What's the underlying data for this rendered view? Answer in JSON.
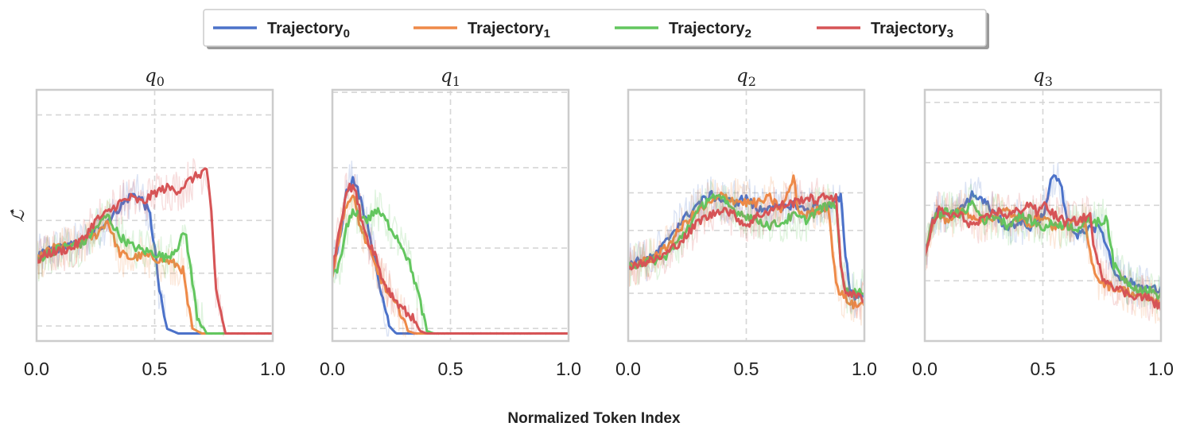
{
  "chart_data": {
    "type": "line",
    "xlabel": "Normalized Token Index",
    "ylabel": "ℒ̂",
    "x_ticks": [
      "0.0",
      "0.5",
      "1.0"
    ],
    "xlim": [
      0,
      1
    ],
    "ylim": [
      0,
      1
    ],
    "grid": true,
    "legend_position": "top-center",
    "series_styles": [
      {
        "base": "Trajectory",
        "sub": "0",
        "color": "#4c72c9"
      },
      {
        "base": "Trajectory",
        "sub": "1",
        "color": "#ee8a48"
      },
      {
        "base": "Trajectory",
        "sub": "2",
        "color": "#63c65f"
      },
      {
        "base": "Trajectory",
        "sub": "3",
        "color": "#d65456"
      }
    ],
    "panels": [
      {
        "title_base": "q",
        "title_sub": "0",
        "series": [
          {
            "name": "Trajectory0",
            "x": [
              0,
              0.05,
              0.1,
              0.15,
              0.2,
              0.25,
              0.3,
              0.35,
              0.4,
              0.42,
              0.45,
              0.48,
              0.5,
              0.52,
              0.55,
              0.6,
              0.7,
              1.0
            ],
            "y": [
              0.33,
              0.36,
              0.37,
              0.38,
              0.4,
              0.44,
              0.48,
              0.53,
              0.58,
              0.58,
              0.56,
              0.5,
              0.37,
              0.2,
              0.05,
              0.03,
              0.03,
              0.03
            ]
          },
          {
            "name": "Trajectory1",
            "x": [
              0,
              0.05,
              0.1,
              0.15,
              0.2,
              0.25,
              0.3,
              0.35,
              0.4,
              0.45,
              0.5,
              0.55,
              0.6,
              0.62,
              0.64,
              0.66,
              0.7,
              1.0
            ],
            "y": [
              0.32,
              0.36,
              0.38,
              0.37,
              0.4,
              0.42,
              0.48,
              0.35,
              0.33,
              0.34,
              0.33,
              0.32,
              0.3,
              0.28,
              0.15,
              0.05,
              0.03,
              0.03
            ]
          },
          {
            "name": "Trajectory2",
            "x": [
              0,
              0.05,
              0.1,
              0.15,
              0.2,
              0.25,
              0.3,
              0.35,
              0.4,
              0.45,
              0.5,
              0.55,
              0.6,
              0.63,
              0.65,
              0.68,
              0.72,
              1.0
            ],
            "y": [
              0.32,
              0.35,
              0.37,
              0.38,
              0.39,
              0.45,
              0.5,
              0.42,
              0.38,
              0.36,
              0.35,
              0.33,
              0.38,
              0.44,
              0.3,
              0.1,
              0.03,
              0.03
            ]
          },
          {
            "name": "Trajectory3",
            "x": [
              0,
              0.05,
              0.1,
              0.15,
              0.2,
              0.25,
              0.3,
              0.35,
              0.4,
              0.45,
              0.5,
              0.55,
              0.6,
              0.65,
              0.7,
              0.72,
              0.74,
              0.76,
              0.8,
              1.0
            ],
            "y": [
              0.32,
              0.35,
              0.36,
              0.37,
              0.41,
              0.48,
              0.51,
              0.55,
              0.57,
              0.55,
              0.59,
              0.61,
              0.6,
              0.64,
              0.67,
              0.69,
              0.5,
              0.2,
              0.03,
              0.03
            ]
          }
        ]
      },
      {
        "title_base": "q",
        "title_sub": "1",
        "series": [
          {
            "name": "Trajectory0",
            "x": [
              0,
              0.03,
              0.06,
              0.09,
              0.12,
              0.15,
              0.18,
              0.21,
              0.24,
              0.27,
              0.3,
              1.0
            ],
            "y": [
              0.28,
              0.4,
              0.6,
              0.65,
              0.56,
              0.45,
              0.32,
              0.18,
              0.06,
              0.03,
              0.03,
              0.03
            ]
          },
          {
            "name": "Trajectory1",
            "x": [
              0,
              0.03,
              0.06,
              0.09,
              0.12,
              0.15,
              0.18,
              0.21,
              0.24,
              0.27,
              0.3,
              0.32,
              0.35,
              1.0
            ],
            "y": [
              0.27,
              0.42,
              0.55,
              0.57,
              0.45,
              0.38,
              0.3,
              0.24,
              0.18,
              0.14,
              0.1,
              0.04,
              0.03,
              0.03
            ]
          },
          {
            "name": "Trajectory2",
            "x": [
              0,
              0.03,
              0.06,
              0.09,
              0.12,
              0.15,
              0.18,
              0.21,
              0.24,
              0.27,
              0.3,
              0.33,
              0.36,
              0.38,
              0.4,
              0.43,
              1.0
            ],
            "y": [
              0.27,
              0.3,
              0.45,
              0.52,
              0.5,
              0.48,
              0.52,
              0.5,
              0.46,
              0.42,
              0.37,
              0.3,
              0.2,
              0.12,
              0.04,
              0.03,
              0.03
            ]
          },
          {
            "name": "Trajectory3",
            "x": [
              0,
              0.03,
              0.06,
              0.09,
              0.12,
              0.15,
              0.18,
              0.21,
              0.24,
              0.27,
              0.3,
              0.33,
              0.35,
              0.37,
              0.4,
              1.0
            ],
            "y": [
              0.28,
              0.45,
              0.6,
              0.62,
              0.5,
              0.4,
              0.35,
              0.25,
              0.2,
              0.16,
              0.13,
              0.1,
              0.08,
              0.04,
              0.03,
              0.03
            ]
          }
        ]
      },
      {
        "title_base": "q",
        "title_sub": "2",
        "series": [
          {
            "name": "Trajectory0",
            "x": [
              0,
              0.05,
              0.1,
              0.15,
              0.2,
              0.25,
              0.3,
              0.35,
              0.4,
              0.45,
              0.5,
              0.55,
              0.6,
              0.65,
              0.7,
              0.75,
              0.8,
              0.85,
              0.88,
              0.9,
              0.92,
              0.94,
              0.96,
              1.0
            ],
            "y": [
              0.3,
              0.32,
              0.33,
              0.38,
              0.45,
              0.5,
              0.55,
              0.58,
              0.56,
              0.55,
              0.57,
              0.52,
              0.54,
              0.52,
              0.55,
              0.52,
              0.54,
              0.53,
              0.55,
              0.57,
              0.35,
              0.2,
              0.18,
              0.18
            ]
          },
          {
            "name": "Trajectory1",
            "x": [
              0,
              0.05,
              0.1,
              0.15,
              0.2,
              0.25,
              0.3,
              0.35,
              0.4,
              0.45,
              0.5,
              0.55,
              0.6,
              0.65,
              0.7,
              0.72,
              0.75,
              0.8,
              0.85,
              0.87,
              0.89,
              0.92,
              0.96,
              1.0
            ],
            "y": [
              0.3,
              0.31,
              0.33,
              0.36,
              0.42,
              0.48,
              0.52,
              0.55,
              0.58,
              0.56,
              0.55,
              0.55,
              0.57,
              0.52,
              0.65,
              0.52,
              0.5,
              0.52,
              0.54,
              0.3,
              0.2,
              0.17,
              0.14,
              0.15
            ]
          },
          {
            "name": "Trajectory2",
            "x": [
              0,
              0.05,
              0.1,
              0.15,
              0.2,
              0.25,
              0.3,
              0.35,
              0.4,
              0.45,
              0.5,
              0.55,
              0.6,
              0.65,
              0.7,
              0.75,
              0.8,
              0.85,
              0.88,
              0.9,
              0.92,
              0.96,
              1.0
            ],
            "y": [
              0.3,
              0.31,
              0.32,
              0.33,
              0.38,
              0.45,
              0.52,
              0.58,
              0.56,
              0.52,
              0.5,
              0.48,
              0.46,
              0.47,
              0.5,
              0.48,
              0.52,
              0.54,
              0.55,
              0.3,
              0.2,
              0.19,
              0.2
            ]
          },
          {
            "name": "Trajectory3",
            "x": [
              0,
              0.05,
              0.1,
              0.15,
              0.2,
              0.25,
              0.3,
              0.35,
              0.4,
              0.45,
              0.5,
              0.55,
              0.6,
              0.65,
              0.7,
              0.75,
              0.8,
              0.85,
              0.88,
              0.9,
              0.92,
              0.96,
              1.0
            ],
            "y": [
              0.3,
              0.31,
              0.32,
              0.34,
              0.38,
              0.42,
              0.48,
              0.5,
              0.53,
              0.5,
              0.46,
              0.5,
              0.52,
              0.54,
              0.55,
              0.57,
              0.56,
              0.58,
              0.57,
              0.3,
              0.2,
              0.18,
              0.17
            ]
          }
        ]
      },
      {
        "title_base": "q",
        "title_sub": "3",
        "series": [
          {
            "name": "Trajectory0",
            "x": [
              0,
              0.03,
              0.06,
              0.1,
              0.15,
              0.2,
              0.25,
              0.3,
              0.35,
              0.4,
              0.45,
              0.5,
              0.53,
              0.55,
              0.58,
              0.6,
              0.65,
              0.7,
              0.75,
              0.78,
              0.8,
              0.85,
              0.9,
              0.95,
              1.0
            ],
            "y": [
              0.33,
              0.48,
              0.52,
              0.5,
              0.52,
              0.58,
              0.56,
              0.5,
              0.45,
              0.48,
              0.45,
              0.5,
              0.62,
              0.66,
              0.6,
              0.48,
              0.42,
              0.46,
              0.44,
              0.35,
              0.28,
              0.24,
              0.22,
              0.21,
              0.2
            ]
          },
          {
            "name": "Trajectory1",
            "x": [
              0,
              0.03,
              0.06,
              0.1,
              0.15,
              0.2,
              0.25,
              0.3,
              0.35,
              0.4,
              0.45,
              0.5,
              0.55,
              0.6,
              0.65,
              0.68,
              0.7,
              0.73,
              0.78,
              0.85,
              0.9,
              0.95,
              1.0
            ],
            "y": [
              0.33,
              0.46,
              0.5,
              0.48,
              0.52,
              0.5,
              0.48,
              0.5,
              0.52,
              0.48,
              0.47,
              0.5,
              0.45,
              0.46,
              0.47,
              0.46,
              0.35,
              0.25,
              0.22,
              0.2,
              0.18,
              0.17,
              0.15
            ]
          },
          {
            "name": "Trajectory2",
            "x": [
              0,
              0.03,
              0.06,
              0.1,
              0.15,
              0.2,
              0.25,
              0.3,
              0.35,
              0.4,
              0.45,
              0.5,
              0.55,
              0.6,
              0.65,
              0.7,
              0.75,
              0.77,
              0.8,
              0.85,
              0.9,
              0.95,
              1.0
            ],
            "y": [
              0.33,
              0.48,
              0.5,
              0.52,
              0.5,
              0.55,
              0.48,
              0.5,
              0.46,
              0.5,
              0.48,
              0.45,
              0.47,
              0.46,
              0.45,
              0.48,
              0.47,
              0.5,
              0.3,
              0.24,
              0.21,
              0.2,
              0.18
            ]
          },
          {
            "name": "Trajectory3",
            "x": [
              0,
              0.03,
              0.06,
              0.1,
              0.15,
              0.2,
              0.25,
              0.3,
              0.35,
              0.4,
              0.45,
              0.48,
              0.5,
              0.55,
              0.6,
              0.65,
              0.7,
              0.72,
              0.75,
              0.8,
              0.85,
              0.9,
              0.95,
              1.0
            ],
            "y": [
              0.33,
              0.46,
              0.52,
              0.5,
              0.5,
              0.46,
              0.48,
              0.52,
              0.5,
              0.52,
              0.55,
              0.5,
              0.55,
              0.5,
              0.47,
              0.48,
              0.5,
              0.35,
              0.26,
              0.22,
              0.19,
              0.18,
              0.17,
              0.13
            ]
          }
        ]
      }
    ]
  }
}
